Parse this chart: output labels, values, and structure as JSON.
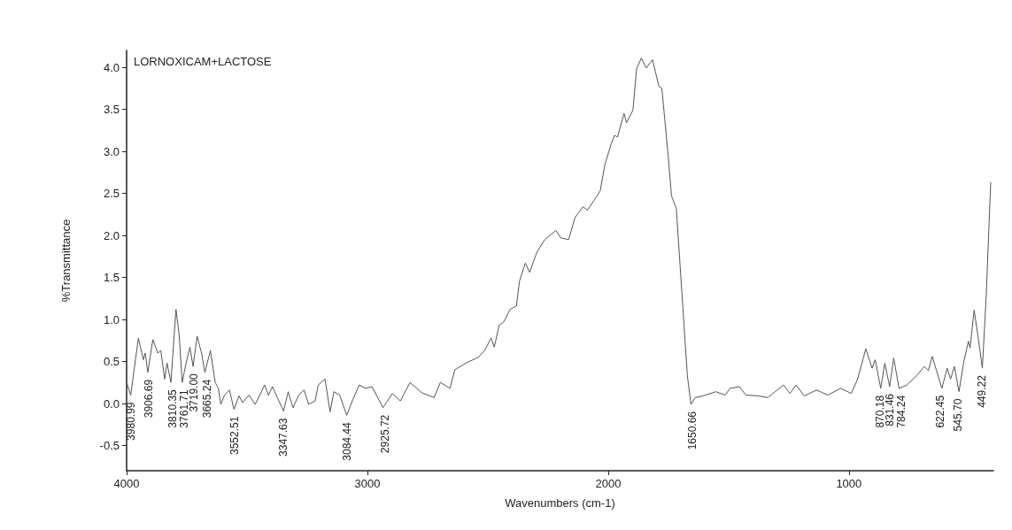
{
  "chart_data": {
    "type": "line",
    "title": "LORNOXICAM+LACTOSE",
    "xlabel": "Wavenumbers (cm-1)",
    "ylabel": "%Transmittance",
    "xlim": [
      4000,
      400
    ],
    "xticks": [
      4000,
      3000,
      2000,
      1000
    ],
    "ylim": [
      -0.8,
      4.2
    ],
    "yticks": [
      -0.5,
      {
        "value": 0,
        "label": "0.0"
      },
      0.5,
      {
        "value": 1,
        "label": "1.0"
      },
      1.5,
      {
        "value": 2,
        "label": "2.0"
      },
      2.5,
      {
        "value": 3,
        "label": "3.0"
      },
      3.5,
      {
        "value": 4,
        "label": "4.0"
      }
    ],
    "grid": false,
    "marker": "none",
    "line_style": "solid",
    "series": [
      {
        "color": "#555555",
        "x": [
          4000,
          3983,
          3951,
          3931,
          3923,
          3912,
          3891,
          3871,
          3858,
          3842,
          3832,
          3816,
          3795,
          3782,
          3769,
          3753,
          3737,
          3724,
          3707,
          3688,
          3675,
          3652,
          3632,
          3619,
          3609,
          3593,
          3573,
          3554,
          3533,
          3518,
          3492,
          3466,
          3440,
          3427,
          3411,
          3394,
          3374,
          3348,
          3329,
          3309,
          3285,
          3263,
          3244,
          3217,
          3204,
          3176,
          3155,
          3139,
          3115,
          3086,
          3060,
          3034,
          3007,
          2981,
          2935,
          2896,
          2863,
          2823,
          2775,
          2723,
          2697,
          2657,
          2637,
          2591,
          2539,
          2513,
          2486,
          2473,
          2453,
          2434,
          2407,
          2381,
          2368,
          2344,
          2326,
          2296,
          2263,
          2217,
          2197,
          2164,
          2138,
          2105,
          2086,
          2046,
          2033,
          2013,
          1987,
          1974,
          1961,
          1934,
          1924,
          1897,
          1882,
          1862,
          1842,
          1816,
          1789,
          1777,
          1750,
          1737,
          1717,
          1671,
          1656,
          1639,
          1606,
          1553,
          1514,
          1494,
          1455,
          1428,
          1376,
          1337,
          1272,
          1245,
          1219,
          1186,
          1134,
          1088,
          1035,
          990,
          964,
          930,
          904,
          891,
          868,
          851,
          831,
          814,
          792,
          759,
          719,
          687,
          670,
          654,
          614,
          592,
          578,
          562,
          543,
          524,
          504,
          497,
          480,
          463,
          446,
          430,
          418,
          411
        ],
        "values": [
          0.25,
          0.1,
          0.78,
          0.52,
          0.6,
          0.37,
          0.76,
          0.6,
          0.63,
          0.29,
          0.48,
          0.25,
          1.12,
          0.82,
          0.25,
          0.48,
          0.67,
          0.44,
          0.8,
          0.59,
          0.37,
          0.63,
          0.25,
          0.18,
          -0.01,
          0.1,
          0.16,
          -0.07,
          0.09,
          0.01,
          0.1,
          -0.01,
          0.14,
          0.22,
          0.1,
          0.2,
          0.07,
          -0.09,
          0.14,
          -0.05,
          0.1,
          0.16,
          -0.01,
          0.03,
          0.22,
          0.29,
          -0.1,
          0.14,
          0.1,
          -0.14,
          0.05,
          0.22,
          0.18,
          0.2,
          -0.05,
          0.12,
          0.03,
          0.25,
          0.13,
          0.07,
          0.25,
          0.18,
          0.4,
          0.48,
          0.55,
          0.63,
          0.78,
          0.67,
          0.93,
          0.97,
          1.12,
          1.16,
          1.46,
          1.67,
          1.56,
          1.8,
          1.95,
          2.06,
          1.97,
          1.95,
          2.21,
          2.34,
          2.3,
          2.47,
          2.53,
          2.85,
          3.09,
          3.19,
          3.17,
          3.45,
          3.34,
          3.49,
          3.98,
          4.11,
          3.99,
          4.09,
          3.77,
          3.75,
          2.92,
          2.47,
          2.32,
          0.33,
          -0.01,
          0.07,
          0.09,
          0.14,
          0.1,
          0.18,
          0.2,
          0.1,
          0.09,
          0.07,
          0.22,
          0.12,
          0.22,
          0.09,
          0.16,
          0.1,
          0.18,
          0.12,
          0.29,
          0.65,
          0.42,
          0.52,
          0.18,
          0.48,
          0.2,
          0.54,
          0.18,
          0.22,
          0.33,
          0.44,
          0.39,
          0.56,
          0.18,
          0.42,
          0.29,
          0.44,
          0.14,
          0.48,
          0.74,
          0.66,
          1.11,
          0.78,
          0.42,
          1.27,
          2.14,
          2.63
        ]
      }
    ],
    "annotations": [
      {
        "text": "3980.99",
        "x": 3980.99,
        "y": 0.1
      },
      {
        "text": "3906.69",
        "x": 3906.69,
        "y": 0.37
      },
      {
        "text": "3810.35",
        "x": 3810.35,
        "y": 0.25
      },
      {
        "text": "3761.71",
        "x": 3761.71,
        "y": 0.25
      },
      {
        "text": "3719.00",
        "x": 3719.0,
        "y": 0.44
      },
      {
        "text": "3665.24",
        "x": 3665.24,
        "y": 0.37
      },
      {
        "text": "3552.51",
        "x": 3552.51,
        "y": -0.07
      },
      {
        "text": "3347.63",
        "x": 3347.63,
        "y": -0.09
      },
      {
        "text": "3084.44",
        "x": 3084.44,
        "y": -0.14
      },
      {
        "text": "2925.72",
        "x": 2925.72,
        "y": -0.05
      },
      {
        "text": "1650.66",
        "x": 1650.66,
        "y": -0.01
      },
      {
        "text": "870.18",
        "x": 870.18,
        "y": 0.18
      },
      {
        "text": "831.46",
        "x": 831.46,
        "y": 0.2
      },
      {
        "text": "784.24",
        "x": 784.24,
        "y": 0.18
      },
      {
        "text": "622.45",
        "x": 622.45,
        "y": 0.18
      },
      {
        "text": "545.70",
        "x": 545.7,
        "y": 0.14
      },
      {
        "text": "449.22",
        "x": 449.22,
        "y": 0.42
      }
    ]
  }
}
